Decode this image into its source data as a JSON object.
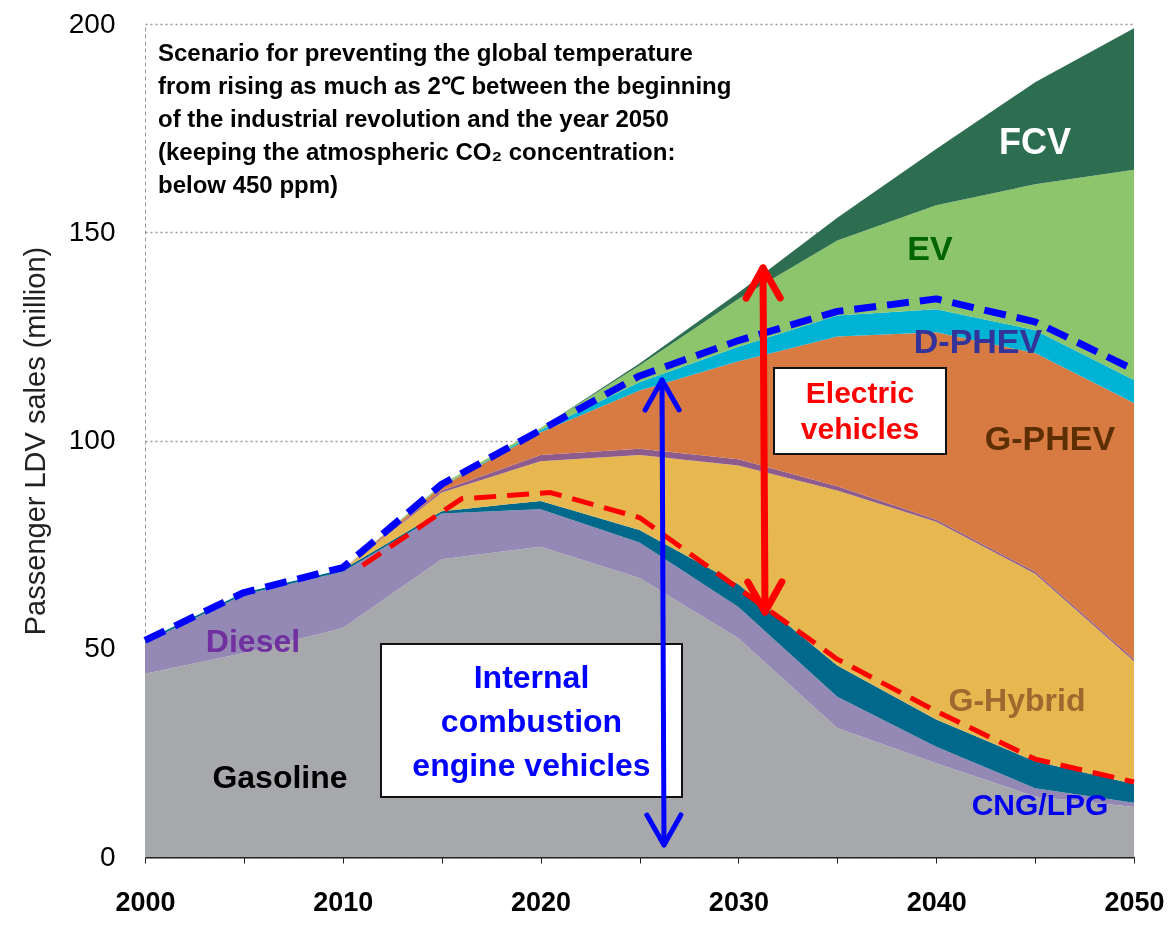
{
  "chart_data": {
    "type": "area",
    "stacked": true,
    "annotations": [
      "Scenario for preventing the global temperature from rising as much as 2℃ between the beginning of the industrial revolution and the year 2050 (keeping the atmospheric CO₂ concentration: below 450 ppm)",
      "Electric vehicles",
      "Internal combustion engine vehicles"
    ],
    "ylabel": "Passenger LDV sales (million)",
    "x": [
      2000,
      2005,
      2010,
      2015,
      2020,
      2025,
      2030,
      2035,
      2040,
      2045,
      2050
    ],
    "xlim": [
      2000,
      2050
    ],
    "xticks": [
      2000,
      {
        "value": 2005,
        "label": null
      },
      2010,
      {
        "value": 2015,
        "label": null
      },
      2020,
      {
        "value": 2025,
        "label": null
      },
      2030,
      {
        "value": 2035,
        "label": null
      },
      2040,
      {
        "value": 2045,
        "label": null
      },
      2050
    ],
    "ylim": [
      0,
      200
    ],
    "yticks": [
      0,
      50,
      100,
      150,
      200
    ],
    "grid": "y",
    "series": [
      {
        "name": "Gasoline",
        "color": "#a7a8ac",
        "values": [
          44,
          49,
          55,
          71.5,
          74.5,
          67,
          52.5,
          31,
          22.5,
          14.5,
          12
        ]
      },
      {
        "name": "Diesel",
        "color": "#9389b4",
        "values": [
          7.5,
          14,
          13.5,
          11,
          9,
          8.5,
          7.5,
          7.5,
          4,
          2,
          1
        ]
      },
      {
        "name": "CNG/LPG",
        "color": "#00688a",
        "values": [
          0.5,
          0.5,
          0.5,
          0.5,
          2,
          3,
          5.5,
          7.5,
          6.5,
          6.5,
          4.5
        ]
      },
      {
        "name": "G-Hybrid",
        "color": "#e6b84f",
        "values": [
          0,
          0,
          0,
          4.5,
          9.5,
          18,
          28.5,
          42,
          47.5,
          45,
          29.5
        ]
      },
      {
        "color": "#8e5b8d",
        "values": [
          0,
          0,
          0,
          0.5,
          1.5,
          1.5,
          1.5,
          1,
          0.5,
          0.5,
          0.5
        ]
      },
      {
        "name": "G-PHEV",
        "color": "#d77b43",
        "values": [
          0,
          0,
          0,
          1,
          5.5,
          14,
          23.5,
          36,
          45,
          52.5,
          61.5
        ]
      },
      {
        "name": "D-PHEV",
        "color": "#00b2d3",
        "values": [
          0,
          0,
          0,
          0,
          0.5,
          2,
          3.5,
          5,
          5.5,
          5.5,
          5.5
        ]
      },
      {
        "name": "EV",
        "color": "#8cc56b",
        "values": [
          0,
          0,
          0,
          0.5,
          0.5,
          4,
          11.5,
          18,
          25,
          35,
          50.5
        ]
      },
      {
        "name": "FCV",
        "color": "#2d6e51",
        "values": [
          0,
          0,
          0,
          0,
          0,
          0.5,
          1.5,
          5.5,
          13.5,
          24.5,
          34
        ]
      },
      {
        "type": "line",
        "line_style": "dashed",
        "color": "#0000ff",
        "values": [
          52,
          63.5,
          69.5,
          89.5,
          102.5,
          115.5,
          124,
          131,
          134,
          128.5,
          117
        ]
      },
      {
        "type": "line",
        "line_style": "dashed",
        "color": "#ff0000",
        "x": [
          2011,
          2016,
          2020.5,
          2025,
          2030,
          2035,
          2040,
          2045,
          2050
        ],
        "values": [
          70,
          86,
          87.5,
          81.5,
          64.5,
          47.5,
          35,
          23.5,
          18
        ]
      }
    ]
  }
}
